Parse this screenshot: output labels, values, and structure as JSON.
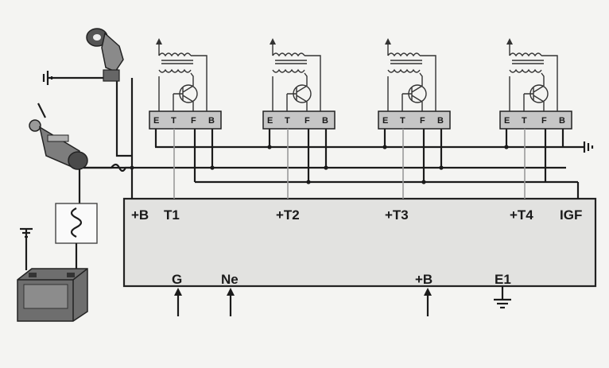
{
  "ecu": {
    "top_labels": [
      "+B",
      "T1",
      "+T2",
      "+T3",
      "+T4",
      "IGF"
    ],
    "bottom_labels": [
      "G",
      "Ne",
      "+B",
      "E1"
    ]
  },
  "modules": {
    "pin_labels": [
      "E",
      "T",
      "F",
      "B"
    ]
  },
  "icons": [
    "ignition-coil-icon",
    "power-transistor-icon",
    "ignition-switch-icon",
    "fusible-link-icon",
    "battery-icon",
    "ground-icon",
    "distributor-icon"
  ]
}
